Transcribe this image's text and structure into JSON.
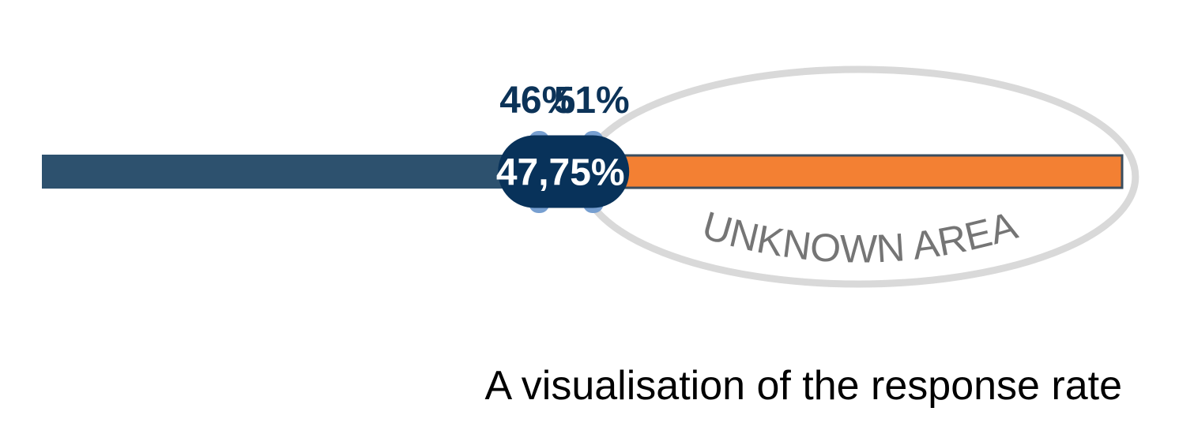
{
  "chart_data": {
    "type": "bar",
    "description_type": "response-rate range bar",
    "scale": {
      "min": 0,
      "max": 100,
      "unit": "%"
    },
    "known_segment": {
      "from": 0,
      "to": 51
    },
    "unknown_segment": {
      "from": 51,
      "to": 100
    },
    "interval": {
      "lower": 46,
      "upper": 51,
      "estimate": 47.75,
      "lower_label": "46%",
      "upper_label": "51%",
      "estimate_label": "47,75%"
    },
    "annotation": "UNKNOWN AREA",
    "caption": "A visualisation of the response rate"
  },
  "colors": {
    "known_bar": "#2d516e",
    "unknown_bar": "#f38033",
    "unknown_bar_outline": "#3a4d5e",
    "interval_marker": "#779fd0",
    "estimate_pill": "#08325a",
    "estimate_text": "#ffffff",
    "label_text": "#0c3358",
    "ellipse_stroke": "#d9d9d9",
    "annotation_text": "#757575",
    "caption_text": "#000000"
  }
}
